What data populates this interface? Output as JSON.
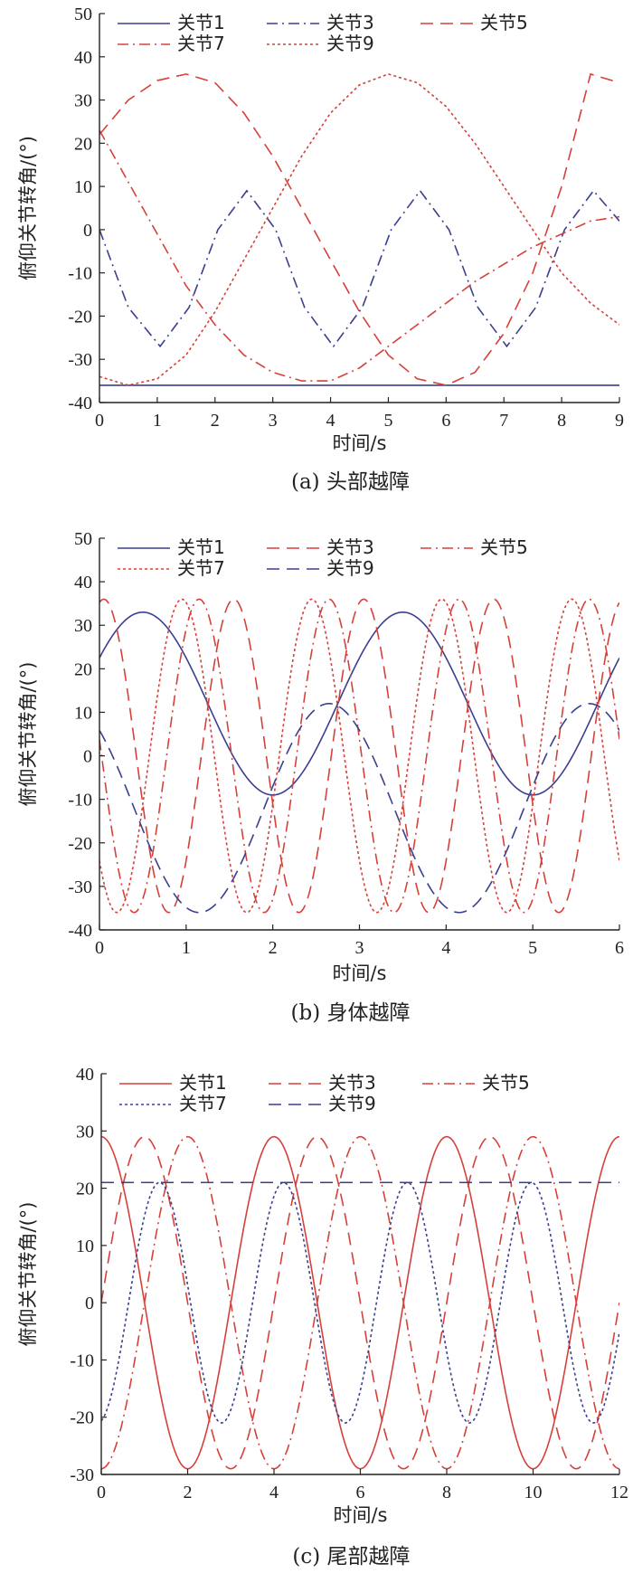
{
  "chart_data": [
    {
      "type": "line",
      "caption": "(a)  头部越障",
      "xlabel": "时间/s",
      "ylabel": "俯仰关节转角/(°)",
      "xlim": [
        0,
        9
      ],
      "ylim": [
        -40,
        50
      ],
      "xticks": [
        0,
        1,
        2,
        3,
        4,
        5,
        6,
        7,
        8,
        9
      ],
      "yticks": [
        -40,
        -30,
        -20,
        -10,
        0,
        10,
        20,
        30,
        40,
        50
      ],
      "legend_position": "top",
      "series": [
        {
          "name": "关节1",
          "color": "#3a3f8f",
          "dash": "solid",
          "x": [
            0,
            1,
            2,
            3,
            4,
            5,
            6,
            7,
            8,
            9
          ],
          "y": [
            -36,
            -36,
            -36,
            -36,
            -36,
            -36,
            -36,
            -36,
            -36,
            -36
          ]
        },
        {
          "name": "关节3",
          "color": "#3a3f8f",
          "dash": "dashdot",
          "x": [
            0,
            0.5,
            1.05,
            1.55,
            2.05,
            2.55,
            3.05,
            3.55,
            4.05,
            4.55,
            5.05,
            5.55,
            6.05,
            6.55,
            7.05,
            7.55,
            8.05,
            8.55,
            9
          ],
          "y": [
            0,
            -18,
            -27,
            -18,
            0,
            9,
            0,
            -18,
            -27,
            -18,
            0,
            9,
            0,
            -18,
            -27,
            -18,
            0,
            9,
            2
          ]
        },
        {
          "name": "关节5",
          "color": "#d6403a",
          "dash": "longdash",
          "x": [
            0,
            0.5,
            1,
            1.5,
            2,
            2.5,
            3,
            3.5,
            4,
            4.5,
            5,
            5.5,
            6,
            6.5,
            7,
            7.5,
            8,
            8.5,
            9
          ],
          "y": [
            22,
            30,
            34.5,
            36,
            34,
            27,
            17,
            5,
            -7,
            -19,
            -29,
            -34.5,
            -36,
            -33,
            -24,
            -10,
            10,
            36,
            34
          ]
        },
        {
          "name": "关节7",
          "color": "#d6403a",
          "dash": "dashdot",
          "x": [
            0,
            0.5,
            1,
            1.5,
            2,
            2.5,
            3,
            3.5,
            4,
            4.5,
            5,
            5.5,
            6,
            6.5,
            7,
            7.5,
            8,
            8.5,
            9
          ],
          "y": [
            23,
            11,
            -1,
            -13,
            -22,
            -29,
            -33,
            -35,
            -35,
            -32,
            -27,
            -22,
            -17,
            -12,
            -8,
            -4,
            -1,
            2,
            3
          ]
        },
        {
          "name": "关节9",
          "color": "#d6403a",
          "dash": "dotted",
          "x": [
            0,
            0.5,
            1,
            1.5,
            2,
            2.5,
            3,
            3.5,
            4,
            4.5,
            5,
            5.5,
            6,
            6.5,
            7,
            7.5,
            8,
            8.5,
            9
          ],
          "y": [
            -34,
            -36,
            -34.5,
            -29,
            -19,
            -7,
            5,
            17,
            27,
            33.5,
            36,
            34,
            28.5,
            20,
            10,
            0,
            -10,
            -17,
            -22
          ]
        }
      ]
    },
    {
      "type": "line",
      "caption": "(b)  身体越障",
      "xlabel": "时间/s",
      "ylabel": "俯仰关节转角/(°)",
      "xlim": [
        0,
        6
      ],
      "ylim": [
        -40,
        50
      ],
      "xticks": [
        0,
        1,
        2,
        3,
        4,
        5,
        6
      ],
      "yticks": [
        -40,
        -30,
        -20,
        -10,
        0,
        10,
        20,
        30,
        40,
        50
      ],
      "legend_position": "top",
      "series": [
        {
          "name": "关节1",
          "color": "#3a3f8f",
          "dash": "solid",
          "wave": {
            "center": 12,
            "amp": 21,
            "period": 3,
            "peak": 0.5
          }
        },
        {
          "name": "关节3",
          "color": "#d6403a",
          "dash": "longdash",
          "wave": {
            "center": 0,
            "amp": 36,
            "period": 1.5,
            "peak": 1.55
          }
        },
        {
          "name": "关节5",
          "color": "#d6403a",
          "dash": "dashdot",
          "wave": {
            "center": 0,
            "amp": 36,
            "period": 1.5,
            "peak": 1.15
          }
        },
        {
          "name": "关节7",
          "color": "#d6403a",
          "dash": "dotted",
          "wave": {
            "center": 0,
            "amp": 36,
            "period": 1.5,
            "peak": 0.95
          }
        },
        {
          "name": "关节9",
          "color": "#3a3f8f",
          "dash": "longdash",
          "wave": {
            "center": -12,
            "amp": 24,
            "period": 3,
            "peak": 2.65
          }
        }
      ]
    },
    {
      "type": "line",
      "caption": "(c)  尾部越障",
      "xlabel": "时间/s",
      "ylabel": "俯仰关节转角/(°)",
      "xlim": [
        0,
        12
      ],
      "ylim": [
        -30,
        40
      ],
      "xticks": [
        0,
        2,
        4,
        6,
        8,
        10,
        12
      ],
      "yticks": [
        -30,
        -20,
        -10,
        0,
        10,
        20,
        30,
        40
      ],
      "legend_position": "top",
      "series": [
        {
          "name": "关节1",
          "color": "#d6403a",
          "dash": "solid",
          "wave": {
            "center": 0,
            "amp": 29,
            "period": 4,
            "peak": 0
          }
        },
        {
          "name": "关节3",
          "color": "#d6403a",
          "dash": "longdash",
          "wave": {
            "center": 0,
            "amp": 29,
            "period": 4,
            "peak": 1
          }
        },
        {
          "name": "关节5",
          "color": "#d6403a",
          "dash": "dashdot",
          "wave": {
            "center": 0,
            "amp": 29,
            "period": 4,
            "peak": 2
          }
        },
        {
          "name": "关节7",
          "color": "#3a3f8f",
          "dash": "dotted",
          "wave": {
            "center": 0,
            "amp": 21,
            "period": 2.87,
            "peak": 1.35
          }
        },
        {
          "name": "关节9",
          "color": "#3a3f8f",
          "dash": "longdash",
          "x": [
            0,
            2,
            4,
            6,
            8,
            10,
            12
          ],
          "y": [
            21,
            21,
            21,
            21,
            21,
            21,
            21
          ]
        }
      ]
    }
  ]
}
